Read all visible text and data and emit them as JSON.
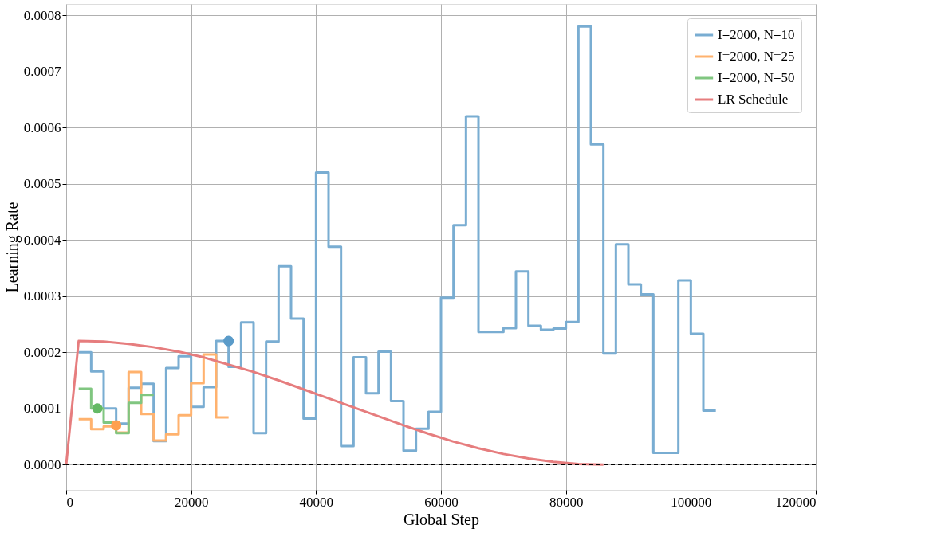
{
  "chart_data": {
    "type": "step",
    "xlabel": "Global Step",
    "ylabel": "Learning Rate",
    "xlim": [
      0,
      120000
    ],
    "xticks": [
      0,
      20000,
      40000,
      60000,
      80000,
      100000,
      120000
    ],
    "ylim": [
      -4.5e-05,
      0.00082
    ],
    "yticks": [
      {
        "value": 0,
        "label": "0.0000"
      },
      {
        "value": 0.0001,
        "label": "0.0001"
      },
      {
        "value": 0.0002,
        "label": "0.0002"
      },
      {
        "value": 0.0003,
        "label": "0.0003"
      },
      {
        "value": 0.0004,
        "label": "0.0004"
      },
      {
        "value": 0.0005,
        "label": "0.0005"
      },
      {
        "value": 0.0006,
        "label": "0.0006"
      },
      {
        "value": 0.0007,
        "label": "0.0007"
      },
      {
        "value": 0.0008,
        "label": "0.0008"
      }
    ],
    "grid": true,
    "legend": "top right",
    "line_style": "solid",
    "ref_lines": [
      {
        "axis": "y",
        "value": 0,
        "color": "#000000",
        "line_style": "dashed"
      }
    ],
    "series": [
      {
        "name": "I=2000, N=10",
        "color": "#79add2",
        "x": [
          2000,
          4000,
          6000,
          8000,
          10000,
          12000,
          14000,
          16000,
          18000,
          20000,
          22000,
          24000,
          26000,
          28000,
          30000,
          32000,
          34000,
          36000,
          38000,
          40000,
          42000,
          44000,
          46000,
          48000,
          50000,
          52000,
          54000,
          56000,
          58000,
          60000,
          62000,
          64000,
          66000,
          68000,
          70000,
          72000,
          74000,
          76000,
          78000,
          80000,
          82000,
          84000,
          86000,
          88000,
          90000,
          92000,
          94000,
          96000,
          98000,
          100000,
          102000,
          104000
        ],
        "values": [
          0.0002,
          0.000166,
          0.0001,
          7.3e-05,
          0.000137,
          0.000144,
          4.2e-05,
          0.000172,
          0.000193,
          0.000103,
          0.000138,
          0.00022,
          0.000174,
          0.000253,
          5.6e-05,
          0.000219,
          0.000353,
          0.00026,
          8.2e-05,
          0.00052,
          0.000388,
          3.3e-05,
          0.000191,
          0.000127,
          0.000201,
          0.000113,
          2.5e-05,
          6.4e-05,
          9.4e-05,
          0.000297,
          0.000426,
          0.00062,
          0.000236,
          0.000236,
          0.000243,
          0.000344,
          0.000247,
          0.00024,
          0.000242,
          0.000254,
          0.00078,
          0.00057,
          0.000198,
          0.000392,
          0.000321,
          0.000303,
          2.1e-05,
          2.1e-05,
          0.000328,
          0.000233,
          9.6e-05,
          9.6e-05
        ]
      },
      {
        "name": "I=2000, N=25",
        "color": "#ffb26e",
        "x": [
          2000,
          4000,
          6000,
          8000,
          10000,
          12000,
          14000,
          16000,
          18000,
          20000,
          22000,
          24000,
          26000
        ],
        "values": [
          8.1e-05,
          6.3e-05,
          6.8e-05,
          5.7e-05,
          0.000165,
          9e-05,
          4.3e-05,
          5.4e-05,
          8.8e-05,
          0.000145,
          0.000196,
          8.4e-05,
          8.4e-05
        ]
      },
      {
        "name": "I=2000, N=50",
        "color": "#80c680",
        "x": [
          2000,
          4000,
          6000,
          8000,
          10000,
          12000,
          14000
        ],
        "values": [
          0.000135,
          0.0001,
          7.5e-05,
          5.6e-05,
          0.00011,
          0.000124,
          0.000124
        ]
      },
      {
        "name": "LR Schedule",
        "color": "#e67d7e",
        "type": "line",
        "x": [
          0,
          2000,
          6000,
          10000,
          14000,
          18000,
          22000,
          26000,
          30000,
          34000,
          38000,
          42000,
          46000,
          50000,
          54000,
          58000,
          62000,
          66000,
          70000,
          74000,
          78000,
          82000,
          86000
        ],
        "values": [
          0,
          0.00022,
          0.000219,
          0.000215,
          0.000209,
          0.000201,
          0.000191,
          0.000178,
          0.000165,
          0.00015,
          0.000134,
          0.000118,
          0.000102,
          8.6e-05,
          7e-05,
          5.5e-05,
          4.1e-05,
          2.9e-05,
          1.9e-05,
          1.1e-05,
          5e-06,
          1e-06,
          0
        ]
      },
      {
        "color": "#5a9bc9",
        "type": "scatter",
        "x": [
          26000
        ],
        "values": [
          0.00022
        ]
      },
      {
        "color": "#ffa04f",
        "type": "scatter",
        "x": [
          8000
        ],
        "values": [
          7e-05
        ]
      },
      {
        "color": "#65b965",
        "type": "scatter",
        "x": [
          5000
        ],
        "values": [
          0.0001
        ]
      }
    ]
  }
}
